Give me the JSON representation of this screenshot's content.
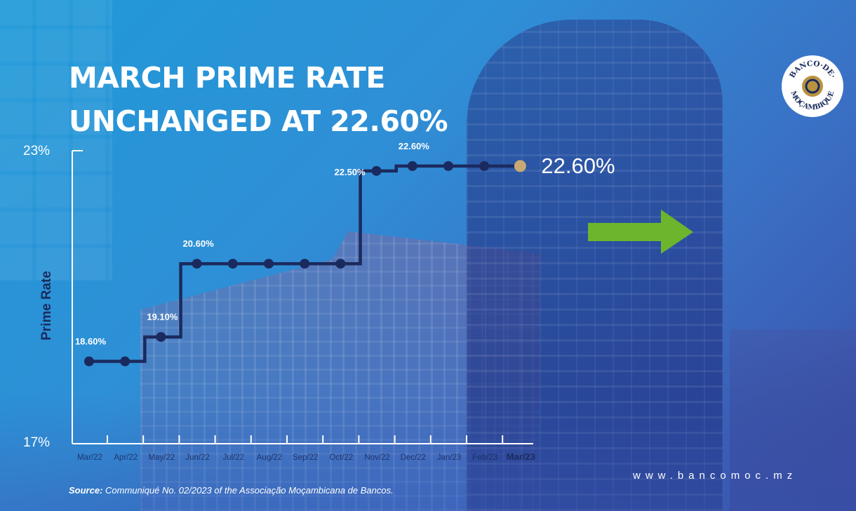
{
  "title": {
    "line1": "MARCH PRIME RATE",
    "line2": "UNCHANGED AT 22.60%"
  },
  "logo": {
    "top_text": "BANCO·DE·",
    "bottom_text": "MOÇAMBIQUE"
  },
  "website": "www.bancomoc.mz",
  "source": {
    "label": "Source:",
    "text": "Communiqué No. 02/2023 of the Associação Moçambicana de Bancos."
  },
  "chart_data": {
    "type": "line",
    "step": true,
    "ylabel": "Prime Rate",
    "ylim": [
      17,
      23
    ],
    "y_tick_labels": [
      "23%",
      "17%"
    ],
    "categories": [
      "Mar/22",
      "Apr/22",
      "May/22",
      "Jun/22",
      "Jul/22",
      "Aug/22",
      "Sep/22",
      "Oct/22",
      "Nov/22",
      "Dec/22",
      "Jan/23",
      "Feb/23",
      "Mar/23"
    ],
    "values": [
      18.6,
      18.6,
      19.1,
      20.6,
      20.6,
      20.6,
      20.6,
      20.6,
      22.5,
      22.6,
      22.6,
      22.6,
      22.6
    ],
    "point_labels": [
      {
        "index": 0,
        "text": "18.60%"
      },
      {
        "index": 2,
        "text": "19.10%"
      },
      {
        "index": 3,
        "text": "20.60%"
      },
      {
        "index": 8,
        "text": "22.50%"
      },
      {
        "index": 9,
        "text": "22.60%"
      },
      {
        "index": 12,
        "text": "22.60%"
      }
    ],
    "highlight_index": 12,
    "colors": {
      "line": "#1b2a5e",
      "highlight": "#c9a873",
      "arrow": "#6cb52d",
      "text": "#ffffff"
    }
  }
}
